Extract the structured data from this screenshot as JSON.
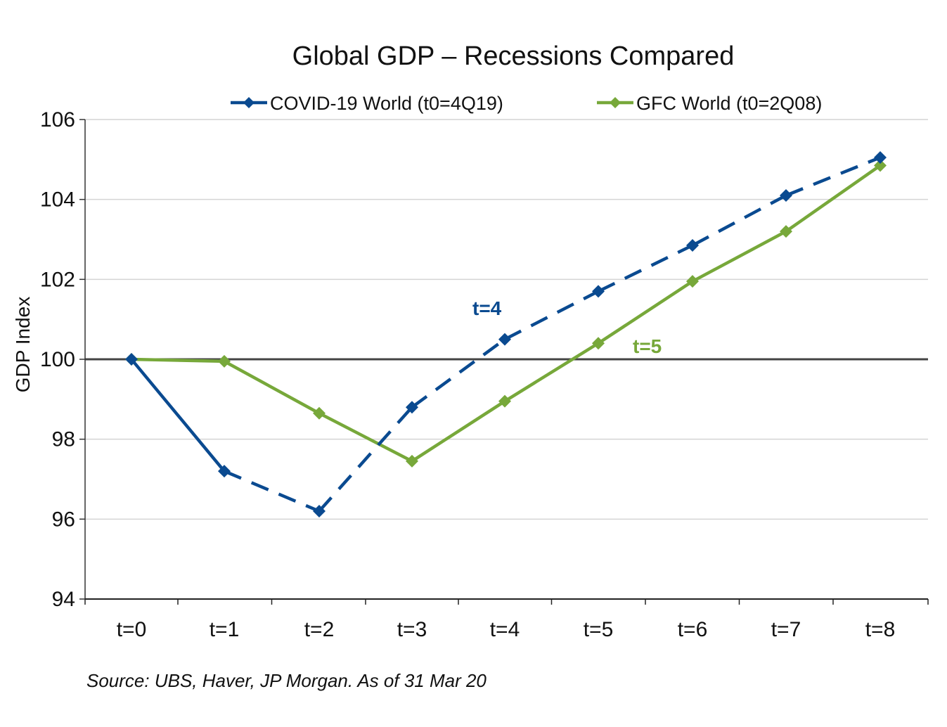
{
  "chart_data": {
    "type": "line",
    "title": "Global GDP – Recessions Compared",
    "xlabel": "",
    "ylabel": "GDP Index",
    "categories": [
      "t=0",
      "t=1",
      "t=2",
      "t=3",
      "t=4",
      "t=5",
      "t=6",
      "t=7",
      "t=8"
    ],
    "ylim": [
      94,
      106
    ],
    "yticks": [
      94,
      96,
      98,
      100,
      102,
      104,
      106
    ],
    "grid": true,
    "baseline": 100,
    "legend_position": "top",
    "series": [
      {
        "name": "COVID-19 World (t0=4Q19)",
        "color": "#0a4a90",
        "marker": "diamond",
        "values": [
          100.0,
          97.2,
          96.2,
          98.8,
          100.5,
          101.7,
          102.85,
          104.1,
          105.05
        ],
        "line_style": [
          "solid",
          "dashed",
          "dashed",
          "dashed",
          "dashed",
          "dashed",
          "dashed",
          "dashed"
        ]
      },
      {
        "name": "GFC World (t0=2Q08)",
        "color": "#77a83a",
        "marker": "diamond",
        "values": [
          100.0,
          99.95,
          98.65,
          97.45,
          98.95,
          100.4,
          101.95,
          103.2,
          104.85
        ],
        "line_style": [
          "solid",
          "solid",
          "solid",
          "solid",
          "solid",
          "solid",
          "solid",
          "solid"
        ]
      }
    ],
    "annotations": [
      {
        "text": "t=4",
        "series": 0,
        "color": "#0a4a90"
      },
      {
        "text": "t=5",
        "series": 1,
        "color": "#77a83a"
      }
    ],
    "source": "Source: UBS, Haver, JP Morgan. As of 31 Mar 20"
  }
}
